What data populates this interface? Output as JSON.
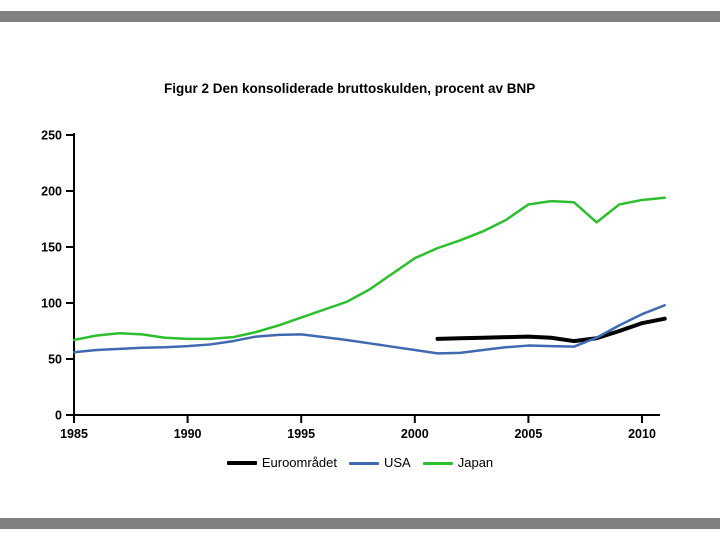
{
  "chart_data": {
    "type": "line",
    "title": "Figur 2 Den konsoliderade bruttoskulden, procent av BNP",
    "xlabel": "",
    "ylabel": "",
    "x": [
      1985,
      1986,
      1987,
      1988,
      1989,
      1990,
      1991,
      1992,
      1993,
      1994,
      1995,
      1996,
      1997,
      1998,
      1999,
      2000,
      2001,
      2002,
      2003,
      2004,
      2005,
      2006,
      2007,
      2008,
      2009,
      2010,
      2011
    ],
    "series": [
      {
        "name": "Euroområdet",
        "color": "#000000",
        "values": [
          null,
          null,
          null,
          null,
          null,
          null,
          null,
          null,
          null,
          null,
          null,
          null,
          null,
          null,
          null,
          null,
          68,
          68.5,
          69,
          69.5,
          70,
          69,
          66,
          68.5,
          75,
          82,
          86
        ]
      },
      {
        "name": "USA",
        "color": "#4169b1",
        "values": [
          56,
          58,
          59,
          60,
          60.5,
          61.5,
          63,
          66,
          70,
          71.5,
          72,
          69.5,
          67,
          64,
          61,
          58,
          55,
          55.5,
          58,
          60.5,
          62,
          61.5,
          61,
          69,
          80,
          90,
          98
        ]
      },
      {
        "name": "Japan",
        "color": "#2dbe2d",
        "values": [
          67,
          71,
          73,
          72,
          69,
          68,
          68,
          69.5,
          74,
          80,
          87,
          94,
          101,
          112,
          126,
          140,
          149,
          156,
          164,
          174,
          188,
          191,
          190,
          172,
          188,
          192,
          194
        ]
      }
    ],
    "xticks": [
      1985,
      1990,
      1995,
      2000,
      2005,
      2010
    ],
    "yticks": [
      0,
      50,
      100,
      150,
      200,
      250
    ],
    "ylim": [
      0,
      250
    ],
    "xlim": [
      1985,
      2011
    ],
    "grid": false,
    "legend_position": "bottom"
  }
}
